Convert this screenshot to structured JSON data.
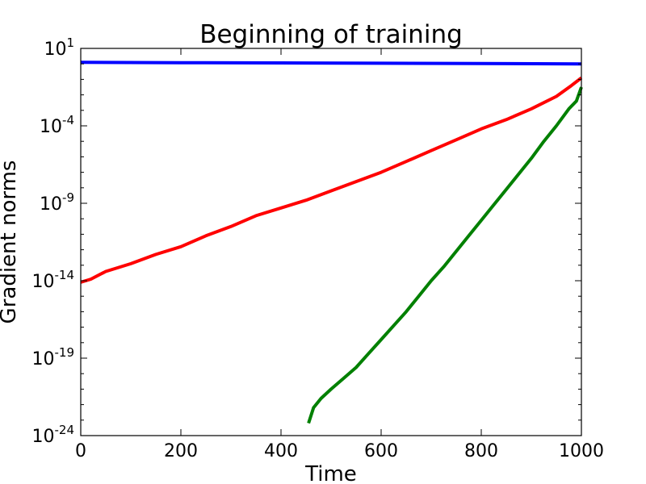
{
  "chart_data": {
    "type": "line",
    "title": "Beginning of training",
    "xlabel": "Time",
    "ylabel": "Gradient norms",
    "xlim": [
      0,
      1000
    ],
    "ylim_log10": [
      -24,
      1
    ],
    "yscale": "log",
    "grid": false,
    "x_ticks": [
      "0",
      "200",
      "400",
      "600",
      "800",
      "1000"
    ],
    "y_ticks": [
      {
        "base": "10",
        "exp": "1"
      },
      {
        "base": "10",
        "exp": "-4"
      },
      {
        "base": "10",
        "exp": "-9"
      },
      {
        "base": "10",
        "exp": "-14"
      },
      {
        "base": "10",
        "exp": "-19"
      },
      {
        "base": "10",
        "exp": "-24"
      }
    ],
    "series": [
      {
        "color": "#0000ff",
        "x": [
          0,
          200,
          400,
          600,
          800,
          1000
        ],
        "log10_y": [
          0.1,
          0.08,
          0.06,
          0.04,
          0.02,
          0.0
        ]
      },
      {
        "color": "#ff0000",
        "x": [
          0,
          20,
          50,
          100,
          150,
          200,
          250,
          300,
          350,
          400,
          450,
          500,
          550,
          600,
          650,
          700,
          750,
          800,
          850,
          900,
          950,
          980,
          1000
        ],
        "log10_y": [
          -14.1,
          -13.9,
          -13.4,
          -12.9,
          -12.3,
          -11.8,
          -11.1,
          -10.5,
          -9.8,
          -9.3,
          -8.8,
          -8.2,
          -7.6,
          -7.0,
          -6.3,
          -5.6,
          -4.9,
          -4.2,
          -3.6,
          -2.9,
          -2.1,
          -1.4,
          -0.9
        ]
      },
      {
        "color": "#008000",
        "x": [
          455,
          465,
          480,
          500,
          525,
          550,
          575,
          600,
          625,
          650,
          675,
          700,
          725,
          750,
          775,
          800,
          825,
          850,
          875,
          900,
          925,
          950,
          975,
          990,
          1000
        ],
        "log10_y": [
          -23.2,
          -22.2,
          -21.6,
          -21.0,
          -20.3,
          -19.6,
          -18.7,
          -17.8,
          -16.9,
          -16.0,
          -15.0,
          -14.0,
          -13.1,
          -12.1,
          -11.1,
          -10.1,
          -9.1,
          -8.1,
          -7.1,
          -6.1,
          -5.0,
          -4.0,
          -2.9,
          -2.4,
          -1.5
        ]
      }
    ]
  }
}
